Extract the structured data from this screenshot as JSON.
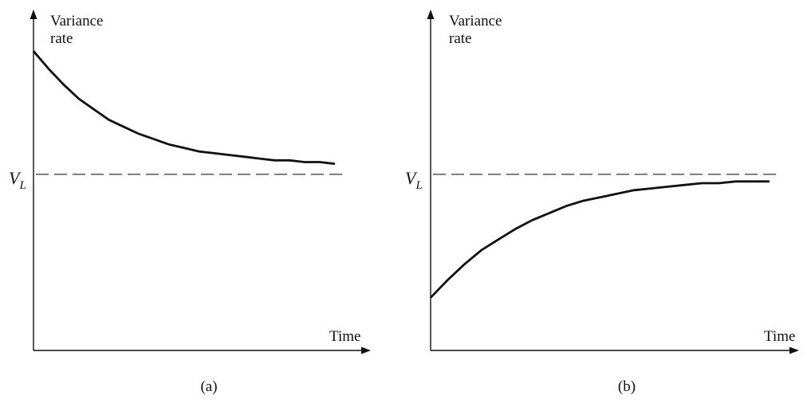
{
  "chart_data": [
    {
      "type": "line",
      "panel_label": "(a)",
      "ylabel": "Variance rate",
      "xlabel": "Time",
      "reference_line": {
        "label_main": "V",
        "label_sub": "L",
        "y": 1.0,
        "style": "dashed"
      },
      "ylim": [
        0,
        1.9
      ],
      "xlim": [
        0,
        10
      ],
      "grid": false,
      "series": [
        {
          "x": [
            0,
            0.5,
            1,
            1.5,
            2,
            2.5,
            3,
            3.5,
            4,
            4.5,
            5,
            5.5,
            6,
            6.5,
            7,
            7.5,
            8,
            8.5,
            9,
            9.5,
            10
          ],
          "values": [
            1.7,
            1.6,
            1.51,
            1.43,
            1.37,
            1.31,
            1.27,
            1.23,
            1.2,
            1.17,
            1.15,
            1.13,
            1.12,
            1.11,
            1.1,
            1.09,
            1.08,
            1.08,
            1.07,
            1.07,
            1.06
          ]
        }
      ]
    },
    {
      "type": "line",
      "panel_label": "(b)",
      "ylabel": "Variance rate",
      "xlabel": "Time",
      "reference_line": {
        "label_main": "V",
        "label_sub": "L",
        "y": 1.0,
        "style": "dashed"
      },
      "ylim": [
        0,
        1.9
      ],
      "xlim": [
        0,
        10
      ],
      "grid": false,
      "series": [
        {
          "x": [
            0,
            0.5,
            1,
            1.5,
            2,
            2.5,
            3,
            3.5,
            4,
            4.5,
            5,
            5.5,
            6,
            6.5,
            7,
            7.5,
            8,
            8.5,
            9,
            9.5,
            10
          ],
          "values": [
            0.3,
            0.4,
            0.49,
            0.57,
            0.63,
            0.69,
            0.74,
            0.78,
            0.82,
            0.85,
            0.87,
            0.89,
            0.91,
            0.92,
            0.93,
            0.94,
            0.95,
            0.95,
            0.96,
            0.96,
            0.96
          ]
        }
      ]
    }
  ]
}
